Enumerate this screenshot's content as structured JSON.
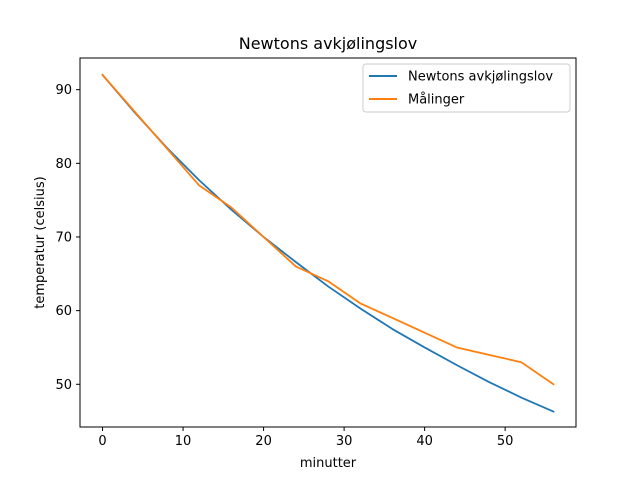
{
  "chart_data": {
    "type": "line",
    "title": "Newtons avkjølingslov",
    "xlabel": "minutter",
    "ylabel": "temperatur (celsius)",
    "xlim": [
      -2.8,
      58.8
    ],
    "ylim": [
      44.2,
      94.3
    ],
    "xticks": [
      0,
      10,
      20,
      30,
      40,
      50
    ],
    "yticks": [
      50,
      60,
      70,
      80,
      90
    ],
    "grid": false,
    "legend_position": "upper right",
    "series": [
      {
        "name": "Newtons avkjølingslov",
        "color": "#1f77b4",
        "x": [
          0,
          4,
          8,
          12,
          16,
          20,
          24,
          28,
          32,
          36,
          40,
          44,
          48,
          52,
          56
        ],
        "y": [
          92.0,
          86.9,
          82.1,
          77.7,
          73.7,
          70.0,
          66.6,
          63.3,
          60.3,
          57.5,
          55.0,
          52.6,
          50.3,
          48.2,
          46.3
        ]
      },
      {
        "name": "Målinger",
        "color": "#ff7f0e",
        "x": [
          0,
          4,
          8,
          12,
          16,
          20,
          24,
          28,
          32,
          36,
          40,
          44,
          48,
          52,
          56
        ],
        "y": [
          92,
          87,
          82,
          77,
          74,
          70,
          66,
          64,
          61,
          59,
          57,
          55,
          54,
          53,
          50
        ]
      }
    ]
  }
}
